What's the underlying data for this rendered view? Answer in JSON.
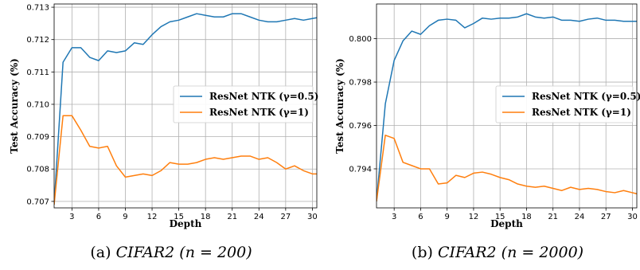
{
  "chart_data": [
    {
      "type": "line",
      "caption_prefix": "(a) ",
      "caption": "CIFAR2 (n = 200)",
      "xlabel": "Depth",
      "ylabel": "Test Accuracy (%)",
      "xlim": [
        1,
        30.5
      ],
      "ylim": [
        0.7068,
        0.7131
      ],
      "xticks": [
        3,
        6,
        9,
        12,
        15,
        18,
        21,
        24,
        27,
        30
      ],
      "yticks": [
        0.707,
        0.708,
        0.709,
        0.71,
        0.711,
        0.712,
        0.713
      ],
      "ytick_format": 3,
      "grid": true,
      "legend_position": "right",
      "x": [
        1,
        2,
        3,
        4,
        5,
        6,
        7,
        8,
        9,
        10,
        11,
        12,
        13,
        14,
        15,
        16,
        17,
        18,
        19,
        20,
        21,
        22,
        23,
        24,
        25,
        26,
        27,
        28,
        29,
        30,
        31
      ],
      "series": [
        {
          "name": "ResNet NTK (γ=0.5)",
          "color": "#1f77b4",
          "values": [
            0.7069,
            0.7113,
            0.71175,
            0.71175,
            0.71145,
            0.71135,
            0.71165,
            0.7116,
            0.71165,
            0.7119,
            0.71185,
            0.71215,
            0.7124,
            0.71255,
            0.7126,
            0.7127,
            0.7128,
            0.71275,
            0.7127,
            0.7127,
            0.7128,
            0.7128,
            0.7127,
            0.7126,
            0.71255,
            0.71255,
            0.7126,
            0.71265,
            0.7126,
            0.71265,
            0.7127
          ]
        },
        {
          "name": "ResNet NTK (γ=1)",
          "color": "#ff7f0e",
          "values": [
            0.7069,
            0.70965,
            0.70965,
            0.7092,
            0.7087,
            0.70865,
            0.7087,
            0.7081,
            0.70775,
            0.7078,
            0.70785,
            0.7078,
            0.70795,
            0.7082,
            0.70815,
            0.70815,
            0.7082,
            0.7083,
            0.70835,
            0.7083,
            0.70835,
            0.7084,
            0.7084,
            0.7083,
            0.70835,
            0.7082,
            0.708,
            0.7081,
            0.70795,
            0.70785,
            0.70785
          ]
        }
      ]
    },
    {
      "type": "line",
      "caption_prefix": "(b) ",
      "caption": "CIFAR2 (n = 2000)",
      "xlabel": "Depth",
      "ylabel": "Test Accuracy (%)",
      "xlim": [
        1,
        30.5
      ],
      "ylim": [
        0.7922,
        0.8016
      ],
      "xticks": [
        3,
        6,
        9,
        12,
        15,
        18,
        21,
        24,
        27,
        30
      ],
      "yticks": [
        0.794,
        0.796,
        0.798,
        0.8
      ],
      "ytick_format": 3,
      "grid": true,
      "legend_position": "right",
      "x": [
        1,
        2,
        3,
        4,
        5,
        6,
        7,
        8,
        9,
        10,
        11,
        12,
        13,
        14,
        15,
        16,
        17,
        18,
        19,
        20,
        21,
        22,
        23,
        24,
        25,
        26,
        27,
        28,
        29,
        30,
        31
      ],
      "series": [
        {
          "name": "ResNet NTK (γ=0.5)",
          "color": "#1f77b4",
          "values": [
            0.7925,
            0.797,
            0.799,
            0.7999,
            0.80035,
            0.8002,
            0.8006,
            0.80085,
            0.8009,
            0.80085,
            0.8005,
            0.8007,
            0.80095,
            0.8009,
            0.80095,
            0.80095,
            0.801,
            0.80115,
            0.801,
            0.80095,
            0.801,
            0.80085,
            0.80085,
            0.8008,
            0.8009,
            0.80095,
            0.80085,
            0.80085,
            0.8008,
            0.8008,
            0.8008
          ]
        },
        {
          "name": "ResNet NTK (γ=1)",
          "color": "#ff7f0e",
          "values": [
            0.7925,
            0.79555,
            0.7954,
            0.7943,
            0.79415,
            0.794,
            0.794,
            0.7933,
            0.79335,
            0.7937,
            0.7936,
            0.7938,
            0.79385,
            0.79375,
            0.7936,
            0.7935,
            0.7933,
            0.7932,
            0.79315,
            0.7932,
            0.7931,
            0.793,
            0.79315,
            0.79305,
            0.7931,
            0.79305,
            0.79295,
            0.7929,
            0.793,
            0.7929,
            0.7928
          ]
        }
      ]
    }
  ]
}
